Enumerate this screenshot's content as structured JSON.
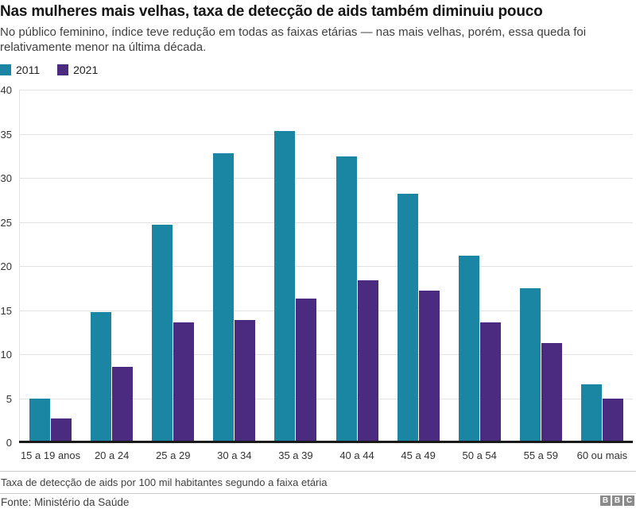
{
  "header": {
    "title": "Nas mulheres mais velhas, taxa de detecção de aids também diminuiu pouco",
    "subtitle": "No público feminino, índice teve redução em todas as faixas etárias — nas mais velhas, porém, essa queda foi relativamente menor na última década."
  },
  "chart_data": {
    "type": "bar",
    "title": "Nas mulheres mais velhas, taxa de detecção de aids também diminuiu pouco",
    "categories": [
      "15 a 19 anos",
      "20 a 24",
      "25 a 29",
      "30 a 34",
      "35 a 39",
      "40 a 44",
      "45 a 49",
      "50 a 54",
      "55 a 59",
      "60 ou mais"
    ],
    "series": [
      {
        "name": "2011",
        "color": "#1b85a4",
        "values": [
          5.0,
          14.8,
          24.7,
          32.8,
          35.3,
          32.4,
          28.2,
          21.2,
          17.5,
          6.6
        ]
      },
      {
        "name": "2021",
        "color": "#4a2b7f",
        "values": [
          2.7,
          8.6,
          13.6,
          13.9,
          16.3,
          18.4,
          17.2,
          13.6,
          11.3,
          5.0
        ]
      }
    ],
    "xlabel": "",
    "ylabel": "",
    "ylim": [
      0,
      40
    ],
    "yticks": [
      0,
      5,
      10,
      15,
      20,
      25,
      30,
      35,
      40
    ],
    "grid": true,
    "legend_position": "top-left"
  },
  "colors": {
    "series_2011": "#1b85a4",
    "series_2021": "#4a2b7f",
    "gridline": "#e2e2e2",
    "baseline": "#1a1a1a"
  },
  "footer": {
    "note": "Taxa de detecção de aids por 100 mil habitantes segundo a faixa etária",
    "source": "Fonte: Ministério da Saúde",
    "logo_letters": [
      "B",
      "B",
      "C"
    ]
  }
}
